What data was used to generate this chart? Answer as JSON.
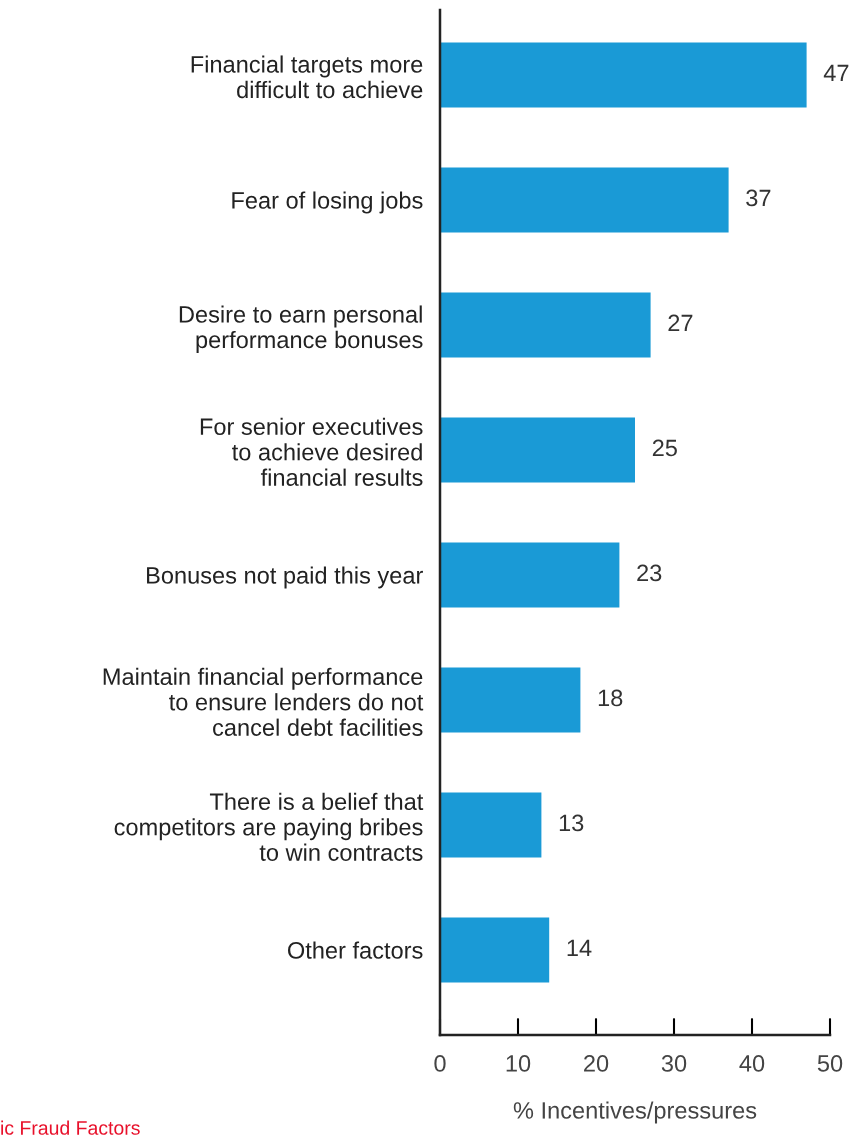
{
  "chart_data": {
    "type": "bar",
    "orientation": "horizontal",
    "xlabel": "% Incentives/pressures",
    "categories": [
      "Financial targets more\ndifficult to achieve",
      "Fear of losing jobs",
      "Desire to earn personal\nperformance bonuses",
      "For senior executives\nto achieve desired\nfinancial results",
      "Bonuses not paid this year",
      "Maintain financial performance\nto ensure lenders do not\ncancel debt facilities",
      "There is a belief that\ncompetitors are paying bribes\nto win contracts",
      "Other factors"
    ],
    "values": [
      47,
      37,
      27,
      25,
      23,
      18,
      13,
      14
    ],
    "color": "#1a9ad6",
    "xlim": [
      0,
      50
    ],
    "xticks": [
      0,
      10,
      20,
      30,
      40,
      50
    ],
    "data_labels": true,
    "annotations": [
      "ic Fraud Factors"
    ]
  }
}
